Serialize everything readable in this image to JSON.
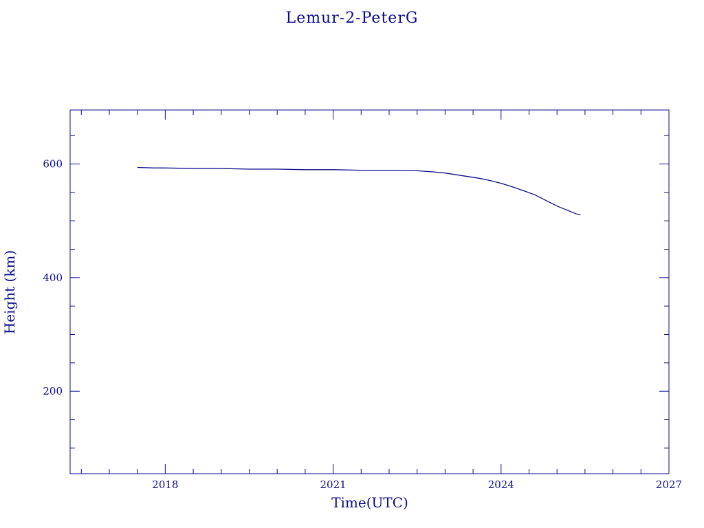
{
  "chart_data": {
    "type": "line",
    "title": "Lemur-2-PeterG",
    "xlabel": "Time(UTC)",
    "ylabel": "Height (km)",
    "xlim": [
      2016.3,
      2027.0
    ],
    "ylim": [
      55,
      695
    ],
    "x_major_ticks": [
      2018,
      2021,
      2024,
      2027
    ],
    "x_tick_labels": [
      "2018",
      "2021",
      "2024",
      "2027"
    ],
    "y_major_ticks": [
      200,
      400,
      600
    ],
    "y_tick_labels": [
      "200",
      "400",
      "600"
    ],
    "grid": false,
    "color": "#0a0a8c",
    "series": [
      {
        "x": [
          2017.5,
          2017.8,
          2018.0,
          2018.5,
          2019.0,
          2019.5,
          2020.0,
          2020.5,
          2021.0,
          2021.5,
          2022.0,
          2022.5,
          2022.8,
          2023.0,
          2023.2,
          2023.4,
          2023.6,
          2023.8,
          2024.0,
          2024.2,
          2024.4,
          2024.6,
          2024.8,
          2025.0,
          2025.2,
          2025.35,
          2025.42
        ],
        "y": [
          594,
          593,
          593,
          592,
          592,
          591,
          591,
          590,
          590,
          589,
          589,
          588,
          586,
          584,
          581,
          578,
          575,
          571,
          566,
          560,
          553,
          546,
          536,
          526,
          518,
          512,
          511
        ]
      }
    ]
  }
}
